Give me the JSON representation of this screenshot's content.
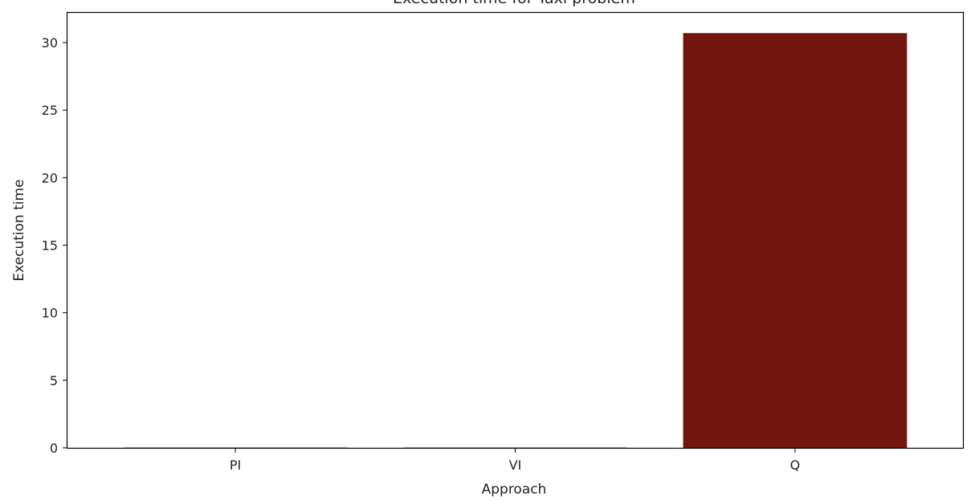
{
  "chart_data": {
    "type": "bar",
    "title": "Execution time for Taxi problem",
    "xlabel": "Approach",
    "ylabel": "Execution time",
    "categories": [
      "PI",
      "VI",
      "Q"
    ],
    "values": [
      0.02,
      0.02,
      30.7
    ],
    "ylim": [
      0,
      32.2
    ],
    "yticks": [
      0,
      5,
      10,
      15,
      20,
      25,
      30
    ],
    "grid": false,
    "bar_color": "#73150f"
  }
}
